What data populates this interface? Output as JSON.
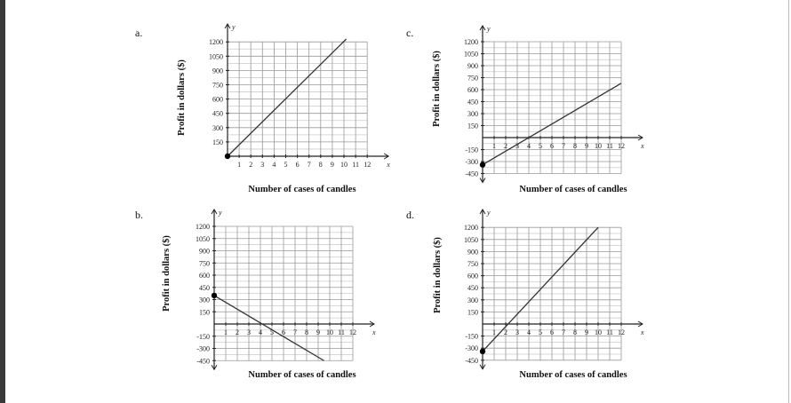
{
  "chart_data": [
    {
      "panel": "a.",
      "type": "line",
      "xlabel": "Number of cases of candles",
      "ylabel": "Profit in dollars ($)",
      "x_axis_letter": "x",
      "y_axis_letter": "y",
      "xlim": [
        0,
        12
      ],
      "ylim": [
        0,
        1200
      ],
      "xticks": [
        "1",
        "2",
        "3",
        "4",
        "5",
        "6",
        "7",
        "8",
        "9",
        "10",
        "11",
        "12"
      ],
      "yticks": [
        "150",
        "300",
        "450",
        "600",
        "750",
        "900",
        "1050",
        "1200"
      ],
      "grid": true,
      "points": [
        [
          0,
          0
        ],
        [
          10.2,
          1230
        ]
      ],
      "start_point": [
        0,
        0
      ],
      "line_color": "#333333"
    },
    {
      "panel": "b.",
      "type": "line",
      "xlabel": "Number of cases of candles",
      "ylabel": "Profit in dollars ($)",
      "x_axis_letter": "x",
      "y_axis_letter": "y",
      "xlim": [
        0,
        12
      ],
      "ylim": [
        -450,
        1200
      ],
      "xticks": [
        "1",
        "2",
        "3",
        "4",
        "5",
        "6",
        "7",
        "8",
        "9",
        "10",
        "11",
        "12"
      ],
      "yticks": [
        "-450",
        "-300",
        "-150",
        "150",
        "300",
        "450",
        "600",
        "750",
        "900",
        "1050",
        "1200"
      ],
      "grid": true,
      "points": [
        [
          0,
          350
        ],
        [
          9.5,
          -450
        ]
      ],
      "start_point": [
        0,
        350
      ],
      "line_color": "#333333"
    },
    {
      "panel": "c.",
      "type": "line",
      "xlabel": "Number of cases of candles",
      "ylabel": "Profit in dollars ($)",
      "x_axis_letter": "x",
      "y_axis_letter": "y",
      "xlim": [
        0,
        12
      ],
      "ylim": [
        -450,
        1200
      ],
      "xticks": [
        "1",
        "2",
        "3",
        "4",
        "5",
        "6",
        "7",
        "8",
        "9",
        "10",
        "11",
        "12"
      ],
      "yticks": [
        "-450",
        "-300",
        "-150",
        "150",
        "300",
        "450",
        "600",
        "750",
        "900",
        "1050",
        "1200"
      ],
      "grid": true,
      "points": [
        [
          0,
          -340
        ],
        [
          12,
          680
        ]
      ],
      "start_point": [
        0,
        -340
      ],
      "line_color": "#333333"
    },
    {
      "panel": "d.",
      "type": "line",
      "xlabel": "Number of cases of candles",
      "ylabel": "Profit in dollars ($)",
      "x_axis_letter": "x",
      "y_axis_letter": "y",
      "xlim": [
        0,
        12
      ],
      "ylim": [
        -450,
        1200
      ],
      "xticks": [
        "1",
        "2",
        "3",
        "4",
        "5",
        "6",
        "7",
        "8",
        "9",
        "10",
        "11",
        "12"
      ],
      "yticks": [
        "-450",
        "-300",
        "-150",
        "150",
        "300",
        "450",
        "600",
        "750",
        "900",
        "1050",
        "1200"
      ],
      "grid": true,
      "points": [
        [
          0,
          -340
        ],
        [
          10,
          1200
        ]
      ],
      "start_point": [
        0,
        -340
      ],
      "line_color": "#333333"
    }
  ]
}
